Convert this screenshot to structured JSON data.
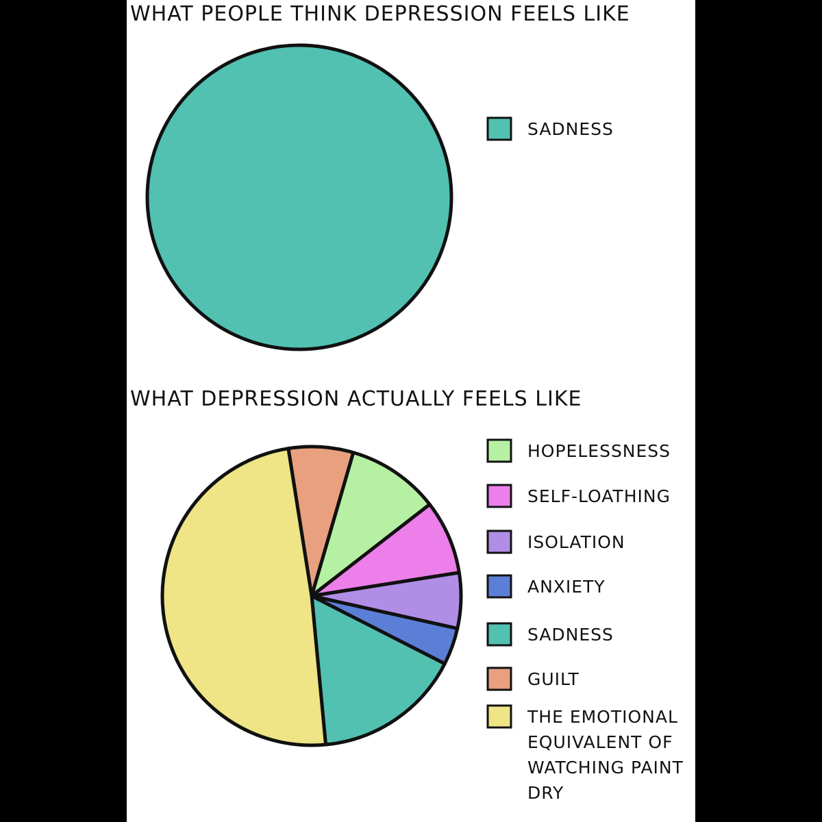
{
  "chart_data": [
    {
      "type": "pie",
      "title": "WHAT PEOPLE THINK DEPRESSION FEELS LIKE",
      "categories": [
        "SADNESS"
      ],
      "values": [
        100
      ],
      "colors": [
        "#52c1b1"
      ]
    },
    {
      "type": "pie",
      "title": "WHAT DEPRESSION ACTUALLY FEELS LIKE",
      "categories": [
        "HOPELESSNESS",
        "SELF-LOATHING",
        "ISOLATION",
        "ANXIETY",
        "SADNESS",
        "GUILT",
        "THE EMOTIONAL EQUIVALENT OF WATCHING PAINT DRY"
      ],
      "values": [
        10,
        8,
        6,
        4,
        16,
        7,
        49
      ],
      "colors": [
        "#b5f0a3",
        "#ec7fe9",
        "#b08ee6",
        "#5b7fd6",
        "#52c1b1",
        "#e8a07f",
        "#efe486"
      ]
    }
  ]
}
